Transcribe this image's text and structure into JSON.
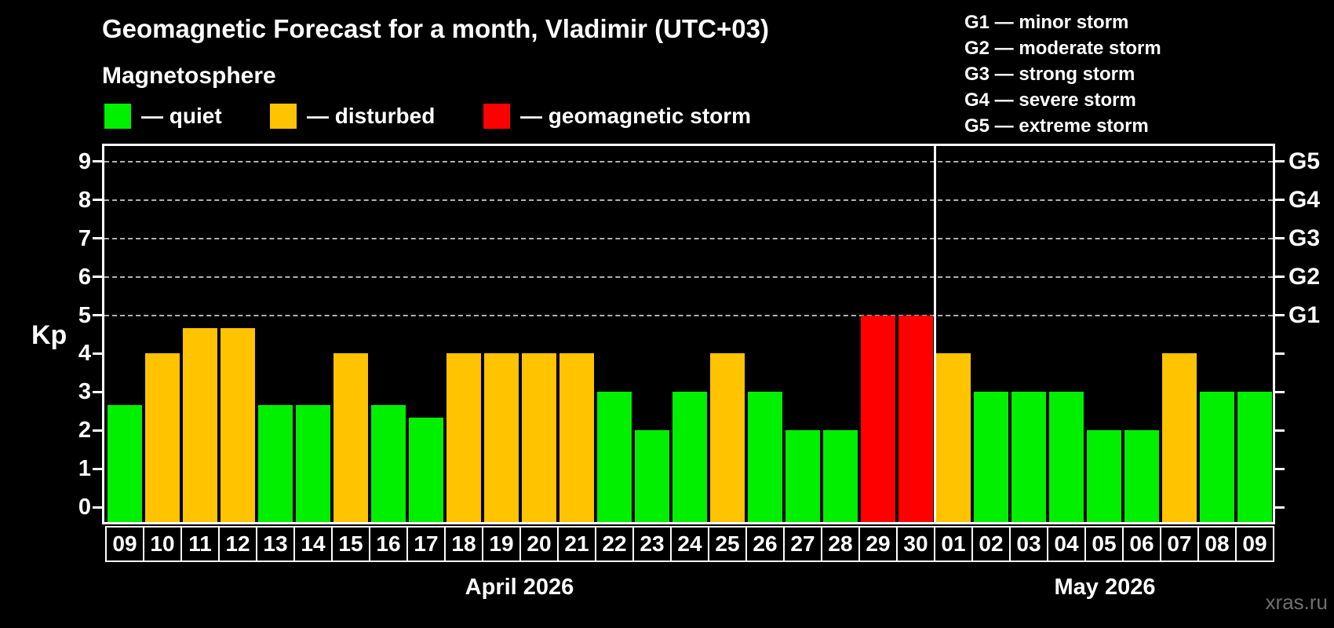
{
  "title": "Geomagnetic Forecast for a month, Vladimir (UTC+03)",
  "subtitle": "Magnetosphere",
  "legend": {
    "items": [
      {
        "key": "quiet",
        "label": "— quiet",
        "color": "#00f000"
      },
      {
        "key": "disturbed",
        "label": "— disturbed",
        "color": "#ffc300"
      },
      {
        "key": "storm",
        "label": "— geomagnetic storm",
        "color": "#ff0000"
      }
    ]
  },
  "g_legend": [
    "G1 — minor storm",
    "G2 — moderate storm",
    "G3 — strong storm",
    "G4 — severe storm",
    "G5 — extreme storm"
  ],
  "axes": {
    "y_label": "Kp",
    "y_ticks": [
      0,
      1,
      2,
      3,
      4,
      5,
      6,
      7,
      8,
      9
    ],
    "g_ticks": [
      {
        "label": "G1",
        "kp": 5
      },
      {
        "label": "G2",
        "kp": 6
      },
      {
        "label": "G3",
        "kp": 7
      },
      {
        "label": "G4",
        "kp": 8
      },
      {
        "label": "G5",
        "kp": 9
      }
    ],
    "gridline_kps": [
      5,
      6,
      7,
      8,
      9
    ]
  },
  "watermark": "xras.ru",
  "chart_data": {
    "type": "bar",
    "title": "Geomagnetic Forecast for a month, Vladimir (UTC+03)",
    "xlabel": "",
    "ylabel": "Kp",
    "ylim": [
      0,
      9
    ],
    "grid": "dashed horizontal lines at Kp 5-9 only",
    "legend_position": "top-left",
    "months": [
      {
        "label": "April 2026",
        "days": 22
      },
      {
        "label": "May 2026",
        "days": 9
      }
    ],
    "categories": [
      "09",
      "10",
      "11",
      "12",
      "13",
      "14",
      "15",
      "16",
      "17",
      "18",
      "19",
      "20",
      "21",
      "22",
      "23",
      "24",
      "25",
      "26",
      "27",
      "28",
      "29",
      "30",
      "01",
      "02",
      "03",
      "04",
      "05",
      "06",
      "07",
      "08",
      "09"
    ],
    "points": [
      {
        "day": "09",
        "month": "April 2026",
        "kp": 2.67,
        "status": "quiet"
      },
      {
        "day": "10",
        "month": "April 2026",
        "kp": 4.0,
        "status": "disturbed"
      },
      {
        "day": "11",
        "month": "April 2026",
        "kp": 4.67,
        "status": "disturbed"
      },
      {
        "day": "12",
        "month": "April 2026",
        "kp": 4.67,
        "status": "disturbed"
      },
      {
        "day": "13",
        "month": "April 2026",
        "kp": 2.67,
        "status": "quiet"
      },
      {
        "day": "14",
        "month": "April 2026",
        "kp": 2.67,
        "status": "quiet"
      },
      {
        "day": "15",
        "month": "April 2026",
        "kp": 4.0,
        "status": "disturbed"
      },
      {
        "day": "16",
        "month": "April 2026",
        "kp": 2.67,
        "status": "quiet"
      },
      {
        "day": "17",
        "month": "April 2026",
        "kp": 2.33,
        "status": "quiet"
      },
      {
        "day": "18",
        "month": "April 2026",
        "kp": 4.0,
        "status": "disturbed"
      },
      {
        "day": "19",
        "month": "April 2026",
        "kp": 4.0,
        "status": "disturbed"
      },
      {
        "day": "20",
        "month": "April 2026",
        "kp": 4.0,
        "status": "disturbed"
      },
      {
        "day": "21",
        "month": "April 2026",
        "kp": 4.0,
        "status": "disturbed"
      },
      {
        "day": "22",
        "month": "April 2026",
        "kp": 3.0,
        "status": "quiet"
      },
      {
        "day": "23",
        "month": "April 2026",
        "kp": 2.0,
        "status": "quiet"
      },
      {
        "day": "24",
        "month": "April 2026",
        "kp": 3.0,
        "status": "quiet"
      },
      {
        "day": "25",
        "month": "April 2026",
        "kp": 4.0,
        "status": "disturbed"
      },
      {
        "day": "26",
        "month": "April 2026",
        "kp": 3.0,
        "status": "quiet"
      },
      {
        "day": "27",
        "month": "April 2026",
        "kp": 2.0,
        "status": "quiet"
      },
      {
        "day": "28",
        "month": "April 2026",
        "kp": 2.0,
        "status": "quiet"
      },
      {
        "day": "29",
        "month": "April 2026",
        "kp": 5.0,
        "status": "storm"
      },
      {
        "day": "30",
        "month": "April 2026",
        "kp": 5.0,
        "status": "storm"
      },
      {
        "day": "01",
        "month": "May 2026",
        "kp": 4.0,
        "status": "disturbed"
      },
      {
        "day": "02",
        "month": "May 2026",
        "kp": 3.0,
        "status": "quiet"
      },
      {
        "day": "03",
        "month": "May 2026",
        "kp": 3.0,
        "status": "quiet"
      },
      {
        "day": "04",
        "month": "May 2026",
        "kp": 3.0,
        "status": "quiet"
      },
      {
        "day": "05",
        "month": "May 2026",
        "kp": 2.0,
        "status": "quiet"
      },
      {
        "day": "06",
        "month": "May 2026",
        "kp": 2.0,
        "status": "quiet"
      },
      {
        "day": "07",
        "month": "May 2026",
        "kp": 4.0,
        "status": "disturbed"
      },
      {
        "day": "08",
        "month": "May 2026",
        "kp": 3.0,
        "status": "quiet"
      },
      {
        "day": "09",
        "month": "May 2026",
        "kp": 3.0,
        "status": "quiet"
      }
    ]
  }
}
